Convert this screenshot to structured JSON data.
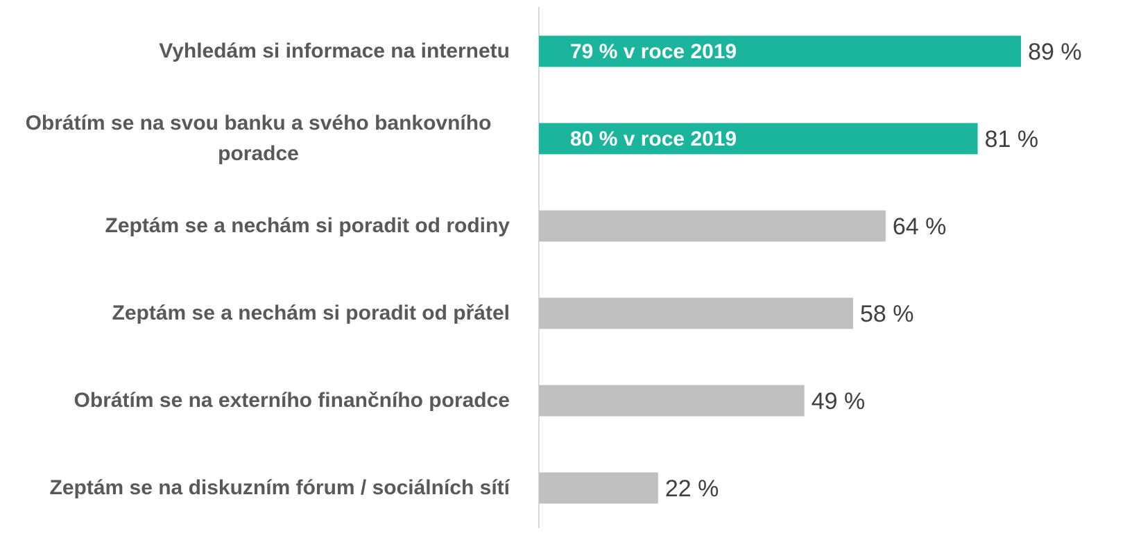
{
  "chart_data": {
    "type": "bar",
    "orientation": "horizontal",
    "categories": [
      "Vyhledám si informace na internetu",
      "Obrátím se na svou banku a svého bankovního poradce",
      "Zeptám se a nechám si poradit od rodiny",
      "Zeptám se a nechám si poradit od přátel",
      "Obrátím se na externího finančního poradce",
      "Zeptám se na diskuzním fórum / sociálních sítí"
    ],
    "values": [
      89,
      81,
      64,
      58,
      49,
      22
    ],
    "value_labels": [
      "89 %",
      "81 %",
      "64 %",
      "58 %",
      "49 %",
      "22 %"
    ],
    "colors": [
      "#1ab59c",
      "#1ab59c",
      "#bfbfbf",
      "#bfbfbf",
      "#bfbfbf",
      "#bfbfbf"
    ],
    "bar_annotations": [
      "79 % v roce 2019",
      "80 % v roce 2019",
      null,
      null,
      null,
      null
    ],
    "xlim": [
      0,
      100
    ]
  }
}
